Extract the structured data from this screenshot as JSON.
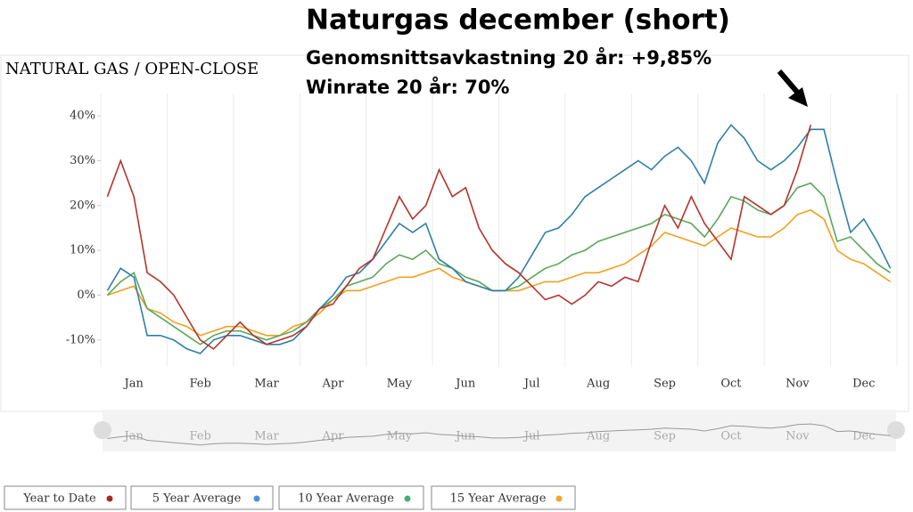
{
  "chart_data": {
    "type": "line",
    "title": "Naturgas december (short)",
    "subtitle": "Genomsnittsavkastning 20 år: +9,85%",
    "annotation": "Winrate 20 år: 70%",
    "chart_label": "NATURAL GAS / OPEN-CLOSE",
    "categories": [
      null,
      null,
      "Jan",
      null,
      null,
      null,
      null,
      "Feb",
      null,
      null,
      null,
      null,
      "Mar",
      null,
      null,
      null,
      null,
      "Apr",
      null,
      null,
      null,
      null,
      "May",
      null,
      null,
      null,
      null,
      "Jun",
      null,
      null,
      null,
      null,
      "Jul",
      null,
      null,
      null,
      null,
      "Aug",
      null,
      null,
      null,
      null,
      "Sep",
      null,
      null,
      null,
      null,
      "Oct",
      null,
      null,
      null,
      null,
      "Nov",
      null,
      null,
      null,
      null,
      "Dec",
      null,
      null
    ],
    "ylim": [
      -16,
      45
    ],
    "yticks": [
      {
        "value": -10,
        "label": "-10%"
      },
      {
        "value": 0,
        "label": "0%"
      },
      {
        "value": 10,
        "label": "10%"
      },
      {
        "value": 20,
        "label": "20%"
      },
      {
        "value": 30,
        "label": "30%"
      },
      {
        "value": 40,
        "label": "40%"
      }
    ],
    "series": [
      {
        "name": "Year to Date",
        "color": "#b5332b",
        "values": [
          22,
          30,
          22,
          5,
          3,
          0,
          -5,
          -10,
          -12,
          -9,
          -6,
          -9,
          -11,
          -10,
          -9,
          -7,
          -3,
          -2,
          2,
          6,
          8,
          15,
          22,
          17,
          20,
          28,
          22,
          24,
          15,
          10,
          7,
          5,
          2,
          -1,
          0,
          -2,
          0,
          3,
          2,
          4,
          3,
          12,
          20,
          15,
          22,
          16,
          12,
          8,
          22,
          20,
          18,
          20,
          28,
          38,
          null,
          null,
          null,
          null,
          null,
          null
        ]
      },
      {
        "name": "5 Year Average",
        "color": "#2f7fa8",
        "values": [
          1,
          6,
          4,
          -9,
          -9,
          -10,
          -12,
          -13,
          -10,
          -9,
          -9,
          -10,
          -11,
          -11,
          -10,
          -7,
          -3,
          0,
          4,
          5,
          8,
          12,
          16,
          14,
          16,
          8,
          6,
          3,
          2,
          1,
          1,
          4,
          9,
          14,
          15,
          18,
          22,
          24,
          26,
          28,
          30,
          28,
          31,
          33,
          30,
          25,
          34,
          38,
          35,
          30,
          28,
          30,
          33,
          37,
          37,
          25,
          14,
          17,
          12,
          6
        ]
      },
      {
        "name": "10 Year Average",
        "color": "#5aa85a",
        "values": [
          0,
          3,
          5,
          -3,
          -5,
          -7,
          -9,
          -11,
          -9,
          -8,
          -8,
          -9,
          -10,
          -9,
          -8,
          -6,
          -3,
          -1,
          2,
          3,
          4,
          7,
          9,
          8,
          10,
          7,
          6,
          4,
          3,
          1,
          1,
          2,
          4,
          6,
          7,
          9,
          10,
          12,
          13,
          14,
          15,
          16,
          18,
          17,
          16,
          13,
          17,
          22,
          21,
          19,
          18,
          20,
          24,
          25,
          22,
          12,
          13,
          10,
          7,
          5
        ]
      },
      {
        "name": "15 Year Average",
        "color": "#f0a020",
        "values": [
          0,
          1,
          2,
          -3,
          -4,
          -6,
          -7,
          -9,
          -8,
          -7,
          -7,
          -8,
          -9,
          -9,
          -7,
          -6,
          -4,
          -1,
          1,
          1,
          2,
          3,
          4,
          4,
          5,
          6,
          4,
          3,
          2,
          1,
          1,
          1,
          2,
          3,
          3,
          4,
          5,
          5,
          6,
          7,
          9,
          11,
          14,
          13,
          12,
          11,
          13,
          15,
          14,
          13,
          13,
          15,
          18,
          19,
          17,
          10,
          8,
          7,
          5,
          3
        ]
      }
    ],
    "legend_dot_colors": [
      "#a52a2a",
      "#4a90d9",
      "#3cb371",
      "#f5a623"
    ]
  }
}
